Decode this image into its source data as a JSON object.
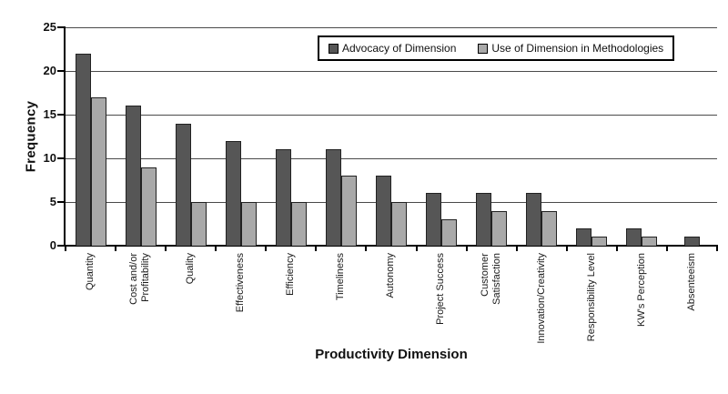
{
  "chart_data": {
    "type": "bar",
    "title": "",
    "xlabel": "Productivity Dimension",
    "ylabel": "Frequency",
    "ylim": [
      0,
      25
    ],
    "yticks": [
      0,
      5,
      10,
      15,
      20,
      25
    ],
    "grid": "horizontal",
    "legend_position": "top-right-inside",
    "categories": [
      "Quantity",
      "Cost and/or\nProfitability",
      "Quality",
      "Effectiveness",
      "Efficiency",
      "Timeliness",
      "Autonomy",
      "Project Success",
      "Customer\nSatisfaction",
      "Innovation/Creativity",
      "Responsibility Level",
      "KW's Perception",
      "Absenteeism"
    ],
    "series": [
      {
        "name": "Advocacy of Dimension",
        "color": "#565656",
        "values": [
          22,
          16,
          14,
          12,
          11,
          11,
          8,
          6,
          6,
          6,
          2,
          2,
          1
        ]
      },
      {
        "name": "Use of Dimension in Methodologies",
        "color": "#a9a9a9",
        "values": [
          17,
          9,
          5,
          5,
          5,
          8,
          5,
          3,
          4,
          4,
          1,
          1,
          0
        ]
      }
    ],
    "style": {
      "bar_border_color": "#222222",
      "gridline_color": "#4a4a4a",
      "axis_color": "#000000",
      "background": "#ffffff"
    }
  }
}
